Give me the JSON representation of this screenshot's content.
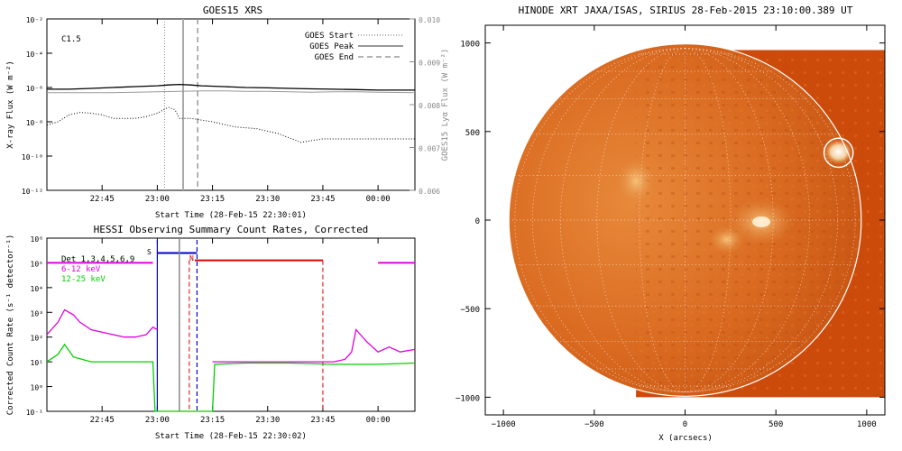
{
  "chart_data": [
    {
      "type": "line",
      "title": "GOES15 XRS",
      "xlabel": "Start Time (28-Feb-15 22:30:01)",
      "ylabel": "X-ray Flux (W m⁻²)",
      "y2label": "GOES15 Lyα Flux (W m⁻²)",
      "xlim": [
        22.5,
        24.167
      ],
      "ylim_log10": [
        -12,
        -2
      ],
      "y2lim": [
        0.006,
        0.01
      ],
      "x_tick_labels": [
        "22:45",
        "23:00",
        "23:15",
        "23:30",
        "23:45",
        "00:00"
      ],
      "x_tick_values": [
        22.75,
        23.0,
        23.25,
        23.5,
        23.75,
        24.0
      ],
      "y_tick_labels": [
        "10⁻¹²",
        "10⁻¹⁰",
        "10⁻⁸",
        "10⁻⁶",
        "10⁻⁴",
        "10⁻²"
      ],
      "y_tick_values": [
        -12,
        -10,
        -8,
        -6,
        -4,
        -2
      ],
      "y2_tick_labels": [
        "0.006",
        "0.007",
        "0.008",
        "0.009",
        "0.010"
      ],
      "y2_tick_values": [
        0.006,
        0.007,
        0.008,
        0.009,
        0.01
      ],
      "annotation": "C1.5",
      "legend": {
        "position": "top-right",
        "entries": [
          "GOES Start",
          "GOES Peak",
          "GOES End"
        ]
      },
      "markers": {
        "start": 23.033,
        "peak": 23.117,
        "end": 23.183
      },
      "series": [
        {
          "x": [
            22.5,
            22.6,
            22.7,
            22.8,
            22.9,
            23.0,
            23.05,
            23.1,
            23.15,
            23.2,
            23.3,
            23.4,
            23.5,
            23.6,
            23.7,
            23.8,
            23.9,
            24.0,
            24.1,
            24.167
          ],
          "log10_flux": [
            -6.1,
            -6.1,
            -6.05,
            -6.0,
            -5.95,
            -5.9,
            -5.85,
            -5.82,
            -5.85,
            -5.9,
            -5.95,
            -6.0,
            -6.02,
            -6.05,
            -6.08,
            -6.1,
            -6.12,
            -6.15,
            -6.15,
            -6.15
          ]
        },
        {
          "x": [
            22.5,
            22.6,
            22.7,
            22.8,
            22.9,
            23.0,
            23.1,
            23.2,
            23.3,
            23.4,
            23.5,
            23.6,
            23.7,
            23.8,
            23.9,
            24.0,
            24.167
          ],
          "log10_flux": [
            -6.3,
            -6.3,
            -6.3,
            -6.3,
            -6.28,
            -6.25,
            -6.22,
            -6.2,
            -6.2,
            -6.22,
            -6.22,
            -6.25,
            -6.28,
            -6.25,
            -6.25,
            -6.28,
            -6.3
          ]
        },
        {
          "x": [
            22.5,
            22.55,
            22.6,
            22.65,
            22.7,
            22.75,
            22.8,
            22.9,
            22.95,
            23.0,
            23.05,
            23.08,
            23.1,
            23.15,
            23.25,
            23.35,
            23.45,
            23.55,
            23.65,
            23.75,
            23.85,
            23.95,
            24.05,
            24.167
          ],
          "log10_flux": [
            -8.2,
            -8.0,
            -7.6,
            -7.45,
            -7.5,
            -7.6,
            -7.8,
            -7.8,
            -7.7,
            -7.5,
            -7.15,
            -7.3,
            -7.8,
            -7.8,
            -8.0,
            -8.3,
            -8.4,
            -8.7,
            -9.2,
            -9.0,
            -9.0,
            -9.0,
            -9.0,
            -9.0
          ]
        }
      ]
    },
    {
      "type": "line",
      "title": "HESSI Observing Summary Count Rates, Corrected",
      "xlabel": "Start Time (28-Feb-15 22:30:02)",
      "ylabel": "Corrected Count Rate (s⁻¹ detector⁻¹)",
      "xlim": [
        22.5,
        24.167
      ],
      "ylim_log10": [
        -1,
        6
      ],
      "x_tick_labels": [
        "22:45",
        "23:00",
        "23:15",
        "23:30",
        "23:45",
        "00:00"
      ],
      "x_tick_values": [
        22.75,
        23.0,
        23.25,
        23.5,
        23.75,
        24.0
      ],
      "y_tick_labels": [
        "10⁻¹",
        "10⁰",
        "10¹",
        "10²",
        "10³",
        "10⁴",
        "10⁵",
        "10⁶"
      ],
      "y_tick_values": [
        -1,
        0,
        1,
        2,
        3,
        4,
        5,
        6
      ],
      "legend": {
        "position": "top-left",
        "entries": [
          "Det 1,3,4,5,6,9",
          "6-12 keV",
          "12-25 keV"
        ]
      },
      "flag_labels": [
        "S",
        "N"
      ],
      "series": [
        {
          "name": "6-12 keV",
          "x": [
            22.5,
            22.55,
            22.58,
            22.62,
            22.65,
            22.7,
            22.75,
            22.8,
            22.85,
            22.9,
            22.95,
            22.98,
            23.0,
            23.25,
            23.3,
            23.4,
            23.5,
            23.6,
            23.7,
            23.75,
            23.8,
            23.85,
            23.88,
            23.9,
            23.95,
            24.0,
            24.05,
            24.1,
            24.167
          ],
          "log10_counts": [
            2.1,
            2.6,
            3.1,
            2.9,
            2.6,
            2.3,
            2.2,
            2.1,
            2.0,
            2.0,
            2.1,
            2.4,
            2.3,
            1.0,
            1.0,
            1.0,
            1.0,
            1.0,
            1.0,
            1.0,
            1.0,
            1.1,
            1.4,
            2.3,
            1.8,
            1.4,
            1.6,
            1.4,
            1.5
          ]
        },
        {
          "name": "12-25 keV",
          "x": [
            22.5,
            22.55,
            22.58,
            22.62,
            22.7,
            22.8,
            22.9,
            22.98,
            22.99,
            23.25,
            23.26,
            23.4,
            23.6,
            23.8,
            23.9,
            24.0,
            24.167
          ],
          "log10_counts": [
            1.0,
            1.3,
            1.7,
            1.2,
            1.0,
            1.0,
            1.0,
            1.0,
            -1.0,
            -1.0,
            0.9,
            0.95,
            0.95,
            0.9,
            0.9,
            0.9,
            0.95
          ]
        }
      ]
    },
    {
      "type": "heatmap",
      "title": "HINODE XRT JAXA/ISAS, SIRIUS 28-Feb-2015 23:10:00.389 UT",
      "xlabel": "X (arcsecs)",
      "xlim": [
        -1100,
        1100
      ],
      "ylim": [
        -1100,
        1100
      ],
      "x_tick_values": [
        -1000,
        -500,
        0,
        500,
        1000
      ],
      "y_tick_values": [
        -1000,
        -500,
        0,
        500,
        1000
      ],
      "x_tick_labels": [
        "−1000",
        "−500",
        "0",
        "500",
        "1000"
      ],
      "y_tick_labels": [
        "−1000",
        "−500",
        "0",
        "500",
        "1000"
      ],
      "fov_x": [
        -270,
        1100
      ],
      "fov_y": [
        -1000,
        960
      ],
      "solar_radius": 970,
      "flare_circle": {
        "x": 845,
        "y": 380,
        "r": 80
      }
    }
  ]
}
